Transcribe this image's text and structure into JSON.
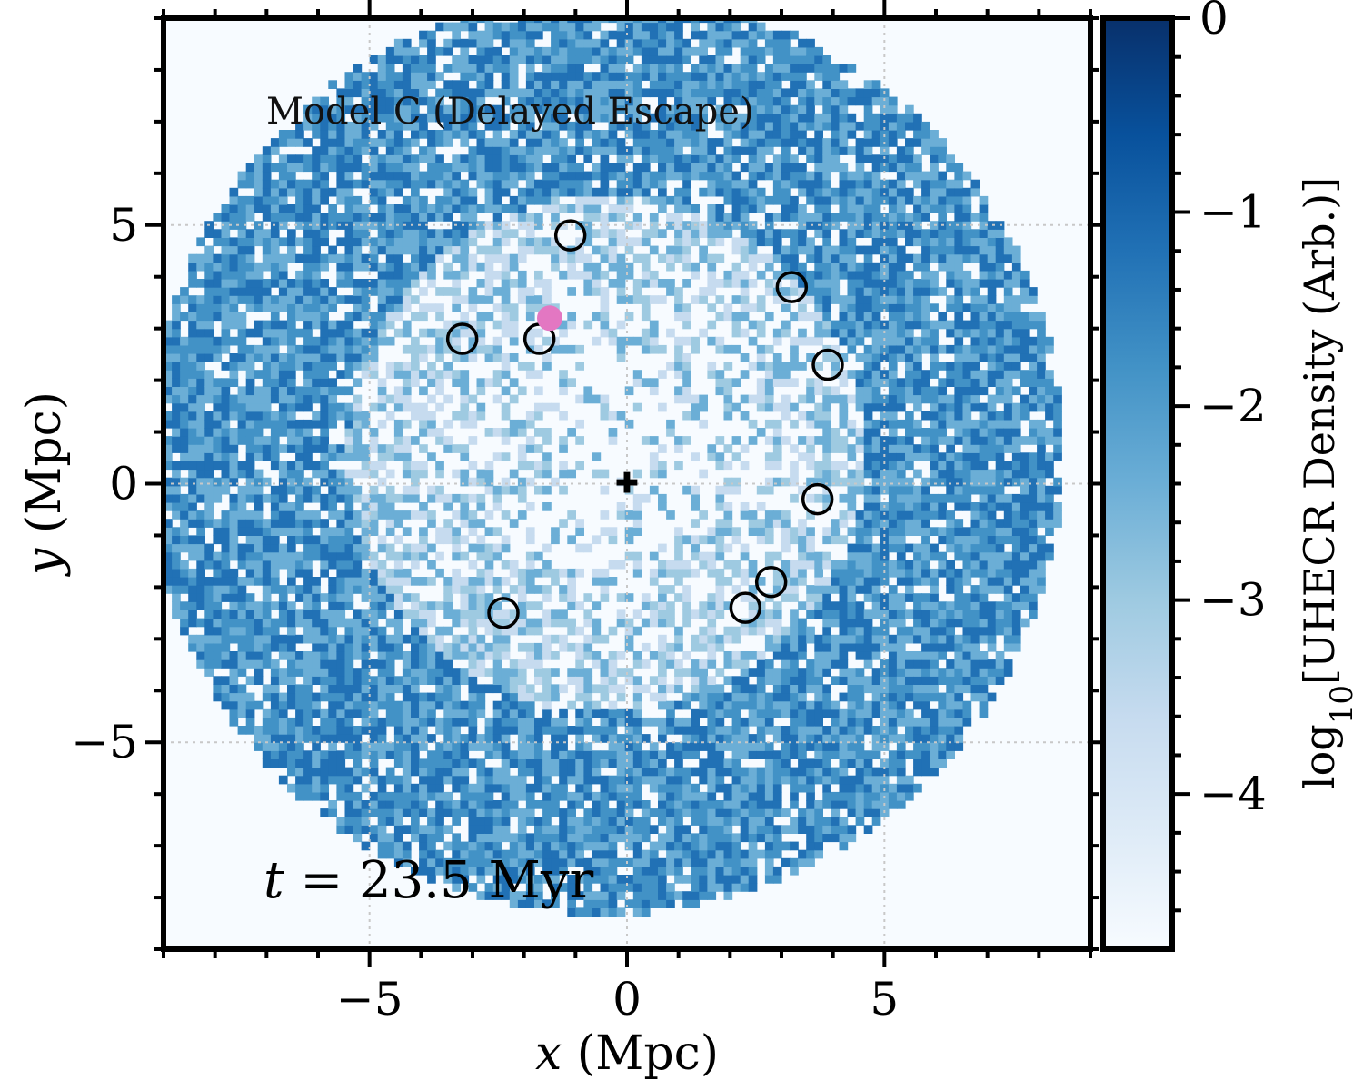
{
  "chart_data": {
    "type": "heatmap",
    "title": "Model C (Delayed Escape)",
    "time_label": {
      "var": "t",
      "eq": " = ",
      "value": "23.5 Myr"
    },
    "xlabel": {
      "var": "x",
      "unit": " (Mpc)"
    },
    "ylabel": {
      "var": "y",
      "unit": " (Mpc)"
    },
    "xlim": [
      -9,
      9
    ],
    "ylim": [
      -9,
      9
    ],
    "xticks": [
      {
        "value": -5,
        "label": "−5"
      },
      {
        "value": 0,
        "label": "0"
      },
      {
        "value": 5,
        "label": "5"
      }
    ],
    "yticks": [
      {
        "value": -5,
        "label": "−5"
      },
      {
        "value": 0,
        "label": "0"
      },
      {
        "value": 5,
        "label": "5"
      }
    ],
    "grid": true,
    "colorbar": {
      "label_prefix": "log",
      "label_sub": "10",
      "label_main": "[UHECR Density (Arb.)]",
      "range": [
        -4.8,
        0
      ],
      "ticks": [
        {
          "value": 0,
          "label": "0"
        },
        {
          "value": -1,
          "label": "−1"
        },
        {
          "value": -2,
          "label": "−2"
        },
        {
          "value": -3,
          "label": "−3"
        },
        {
          "value": -4,
          "label": "−4"
        }
      ],
      "colormap": "Blues"
    },
    "density_field": {
      "shell_outer_radius_mpc": 8.9,
      "shell_inner_radius_mpc": 5.0,
      "shell_center": [
        -0.5,
        0.5
      ]
    },
    "sources": [
      {
        "x": -1.1,
        "y": 4.8
      },
      {
        "x": -3.2,
        "y": 2.8
      },
      {
        "x": -1.7,
        "y": 2.8
      },
      {
        "x": 3.2,
        "y": 3.8
      },
      {
        "x": 3.9,
        "y": 2.3
      },
      {
        "x": 3.7,
        "y": -0.3
      },
      {
        "x": 2.8,
        "y": -1.9
      },
      {
        "x": 2.3,
        "y": -2.4
      },
      {
        "x": -2.4,
        "y": -2.5
      }
    ],
    "observer": {
      "x": -1.5,
      "y": 3.2,
      "color": "#e377c2"
    },
    "center_marker": {
      "x": 0,
      "y": 0
    }
  }
}
